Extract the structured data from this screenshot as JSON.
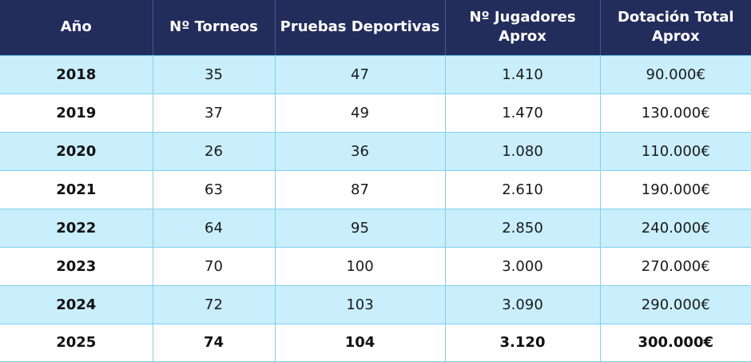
{
  "table": {
    "headers": [
      "Año",
      "Nº Torneos",
      "Pruebas Deportivas",
      "Nº Jugadores Aprox",
      "Dotación Total Aprox"
    ],
    "rows": [
      [
        "2018",
        "35",
        "47",
        "1.410",
        "90.000€"
      ],
      [
        "2019",
        "37",
        "49",
        "1.470",
        "130.000€"
      ],
      [
        "2020",
        "26",
        "36",
        "1.080",
        "110.000€"
      ],
      [
        "2021",
        "63",
        "87",
        "2.610",
        "190.000€"
      ],
      [
        "2022",
        "64",
        "95",
        "2.850",
        "240.000€"
      ],
      [
        "2023",
        "70",
        "100",
        "3.000",
        "270.000€"
      ],
      [
        "2024",
        "72",
        "103",
        "3.090",
        "290.000€"
      ],
      [
        "2025",
        "74",
        "104",
        "3.120",
        "300.000€"
      ]
    ]
  },
  "colors": {
    "header_bg": "#232d5c",
    "row_alt_bg": "#c9eefc",
    "row_bg": "#ffffff",
    "border": "#7fd0ef"
  }
}
